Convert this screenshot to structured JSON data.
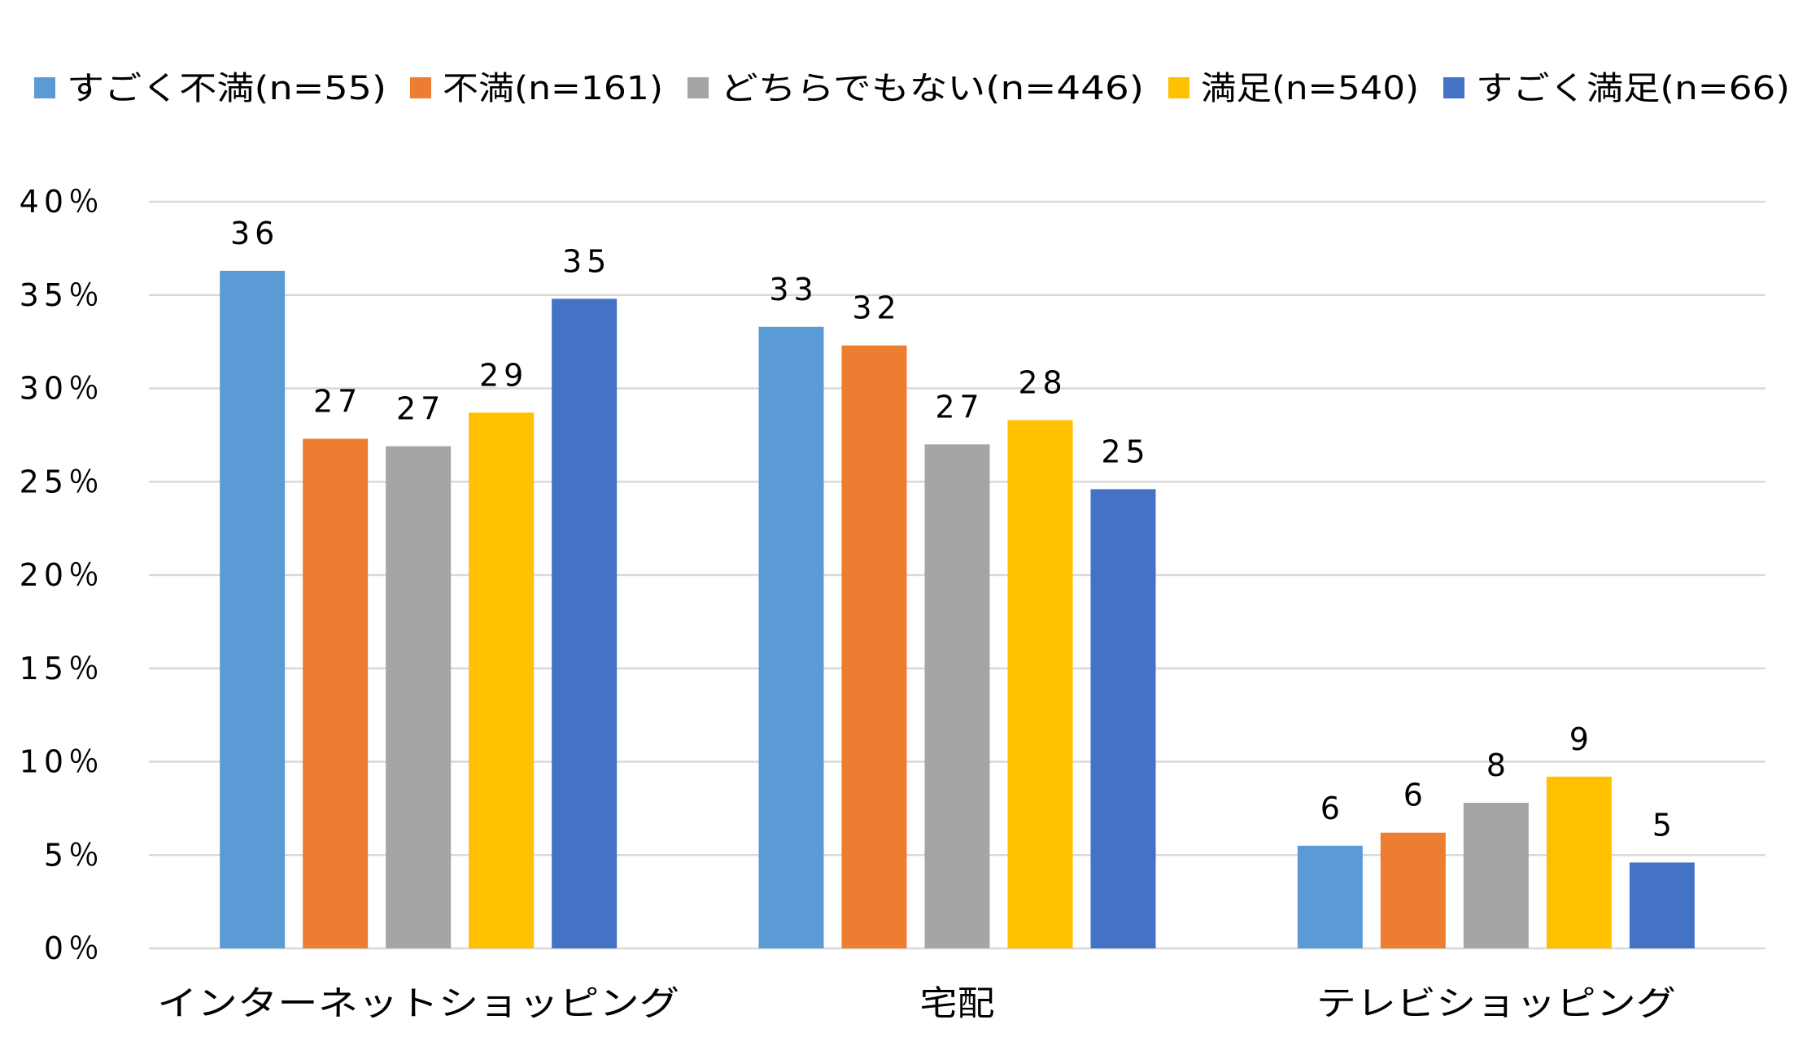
{
  "chart_data": {
    "type": "bar",
    "title": "",
    "xlabel": "",
    "ylabel": "",
    "ylim": [
      0,
      40
    ],
    "y_ticks": [
      0,
      5,
      10,
      15,
      20,
      25,
      30,
      35,
      40
    ],
    "y_tick_labels": [
      "0％",
      "5％",
      "10％",
      "15％",
      "20％",
      "25％",
      "30％",
      "35％",
      "40％"
    ],
    "grid": true,
    "legend_position": "top",
    "categories": [
      "インターネットショッピング",
      "宅配",
      "テレビショッピング"
    ],
    "series": [
      {
        "name": "すごく不満(n=55)",
        "color": "#5B9BD5",
        "values": [
          36.3,
          33.3,
          5.5
        ],
        "labels": [
          "36",
          "33",
          "6"
        ]
      },
      {
        "name": "不満(n=161)",
        "color": "#ED7D31",
        "values": [
          27.3,
          32.3,
          6.2
        ],
        "labels": [
          "27",
          "32",
          "6"
        ]
      },
      {
        "name": "どちらでもない(n=446)",
        "color": "#A5A5A5",
        "values": [
          26.9,
          27.0,
          7.8
        ],
        "labels": [
          "27",
          "27",
          "8"
        ]
      },
      {
        "name": "満足(n=540)",
        "color": "#FFC000",
        "values": [
          28.7,
          28.3,
          9.2
        ],
        "labels": [
          "29",
          "28",
          "9"
        ]
      },
      {
        "name": "すごく満足(n=66)",
        "color": "#4472C4",
        "values": [
          34.8,
          24.6,
          4.6
        ],
        "labels": [
          "35",
          "25",
          "5"
        ]
      }
    ]
  }
}
